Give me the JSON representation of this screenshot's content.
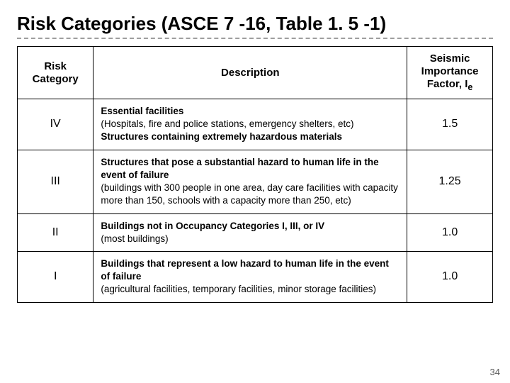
{
  "title": "Risk Categories (ASCE 7 -16, Table 1. 5 -1)",
  "page_number": "34",
  "table": {
    "columns": {
      "col1": "Risk\nCategory",
      "col2": "Description",
      "col3_prefix": "Seismic\nImportance\nFactor, I",
      "col3_sub": "e"
    },
    "rows": [
      {
        "category": "IV",
        "desc_line1_bold": "Essential facilities",
        "desc_line2": "(Hospitals, fire and police stations, emergency shelters, etc)",
        "desc_line3_bold": "Structures containing extremely hazardous materials",
        "factor": "1.5"
      },
      {
        "category": "III",
        "desc_line1_bold": "Structures that pose a substantial hazard to human life in the event of failure",
        "desc_line2": "(buildings with 300 people in one area, day care facilities with capacity more than 150, schools with a capacity more than 250, etc)",
        "desc_line3_bold": "",
        "factor": "1.25"
      },
      {
        "category": "II",
        "desc_line1_bold": "Buildings not in Occupancy Categories I, III, or IV",
        "desc_line2": "(most buildings)",
        "desc_line3_bold": "",
        "factor": "1.0"
      },
      {
        "category": "I",
        "desc_line1_bold": "Buildings that represent a low hazard to human life in the event of failure",
        "desc_line2": "(agricultural facilities, temporary facilities, minor storage facilities)",
        "desc_line3_bold": "",
        "factor": "1.0"
      }
    ],
    "border_color": "#000000",
    "header_fontsize": 15,
    "body_fontsize": 13.5,
    "background_color": "#ffffff"
  }
}
